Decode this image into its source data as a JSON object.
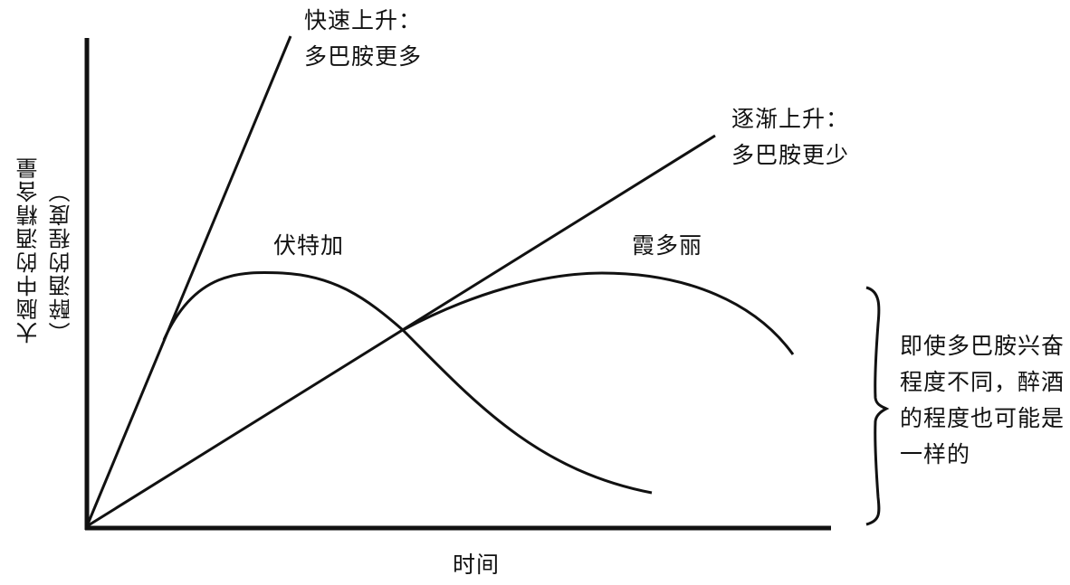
{
  "axes": {
    "x_label": "时间",
    "y_label_line1": "大脑中的酒精含量",
    "y_label_line2": "（醉酒的程度）"
  },
  "lines": {
    "fast": {
      "label_line1": "快速上升：",
      "label_line2": "多巴胺更多"
    },
    "slow": {
      "label_line1": "逐渐上升：",
      "label_line2": "多巴胺更少"
    }
  },
  "curves": {
    "vodka": {
      "label": "伏特加"
    },
    "sherry": {
      "label": "霞多丽"
    }
  },
  "note": {
    "line1": "即使多巴胺兴奋",
    "line2": "程度不同，醉酒",
    "line3": "的程度也可能是",
    "line4": "一样的"
  }
}
